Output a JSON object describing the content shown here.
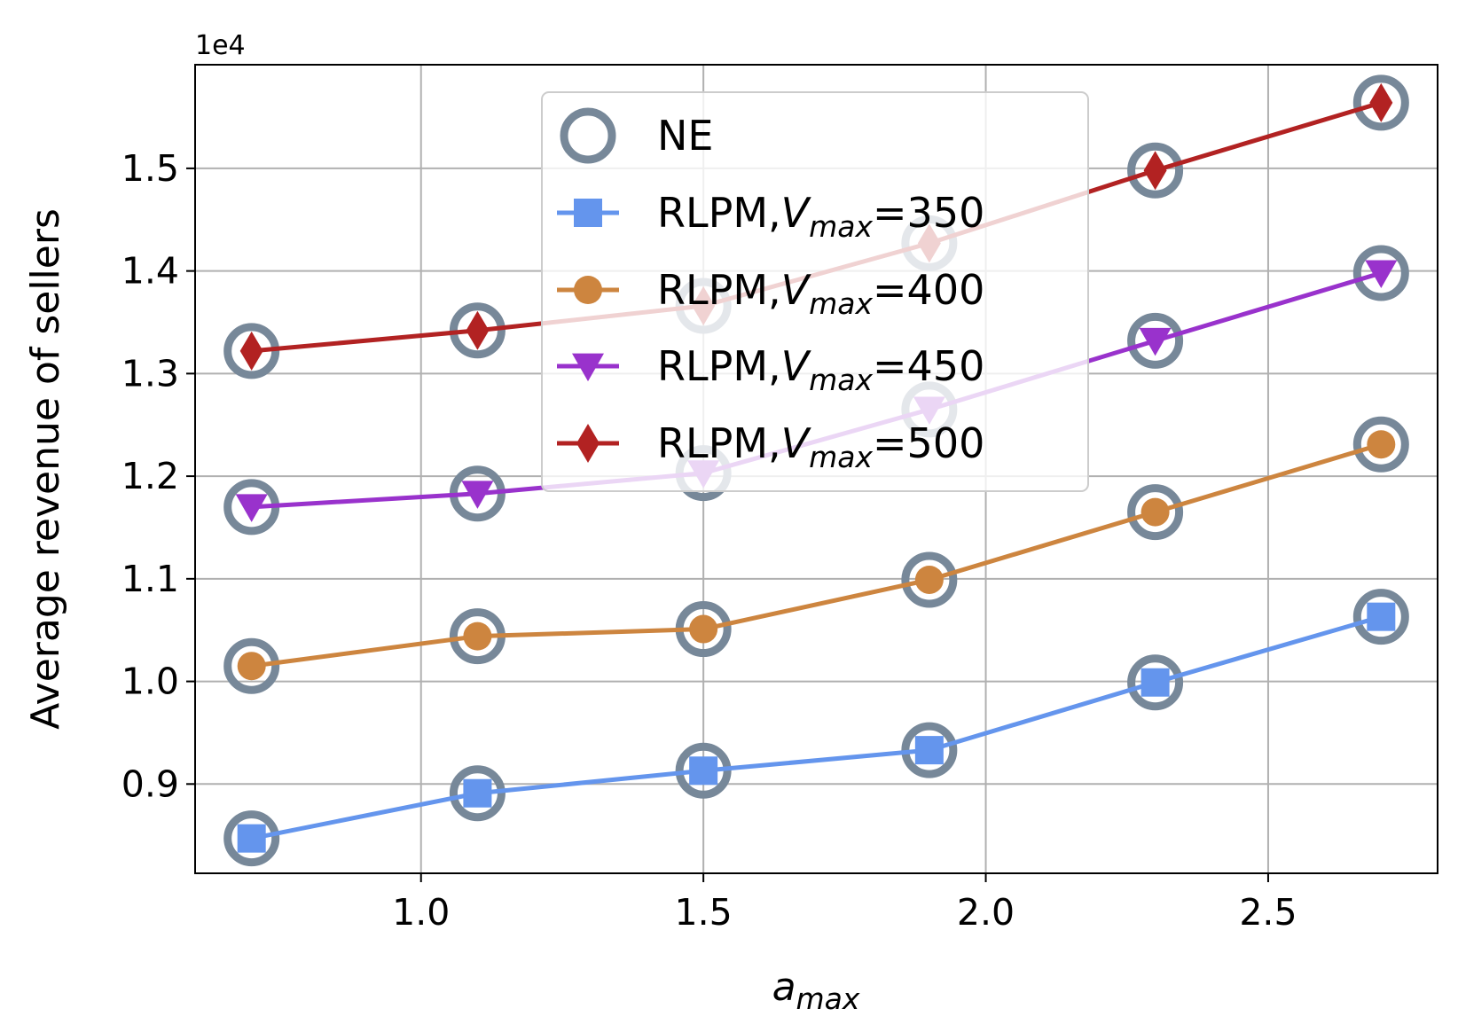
{
  "chart_data": {
    "type": "line",
    "title": "",
    "xlabel": {
      "base": "a",
      "sub": "max"
    },
    "ylabel": "Average revenue of sellers",
    "y_offset_text": "1e4",
    "xlim": [
      0.6,
      2.8
    ],
    "ylim": [
      0.813,
      1.601
    ],
    "x_ticks": [
      1.0,
      1.5,
      2.0,
      2.5
    ],
    "x_tick_labels": [
      "1.0",
      "1.5",
      "2.0",
      "2.5"
    ],
    "y_ticks": [
      0.9,
      1.0,
      1.1,
      1.2,
      1.3,
      1.4,
      1.5
    ],
    "y_tick_labels": [
      "0.9",
      "1.0",
      "1.1",
      "1.2",
      "1.3",
      "1.4",
      "1.5"
    ],
    "grid": true,
    "legend_position": "upper center",
    "x": [
      0.7,
      1.1,
      1.5,
      1.9,
      2.3,
      2.7
    ],
    "series": [
      {
        "name": "NE",
        "label_prefix": "NE",
        "label_var": "",
        "label_sub": "",
        "label_value": "",
        "marker": "ring",
        "color": "#778899",
        "line": false,
        "values_sets": [
          [
            0.847,
            0.891,
            0.913,
            0.933,
            0.999,
            1.063
          ],
          [
            1.015,
            1.044,
            1.051,
            1.099,
            1.165,
            1.231
          ],
          [
            1.17,
            1.183,
            1.203,
            1.265,
            1.332,
            1.398
          ],
          [
            1.322,
            1.342,
            1.366,
            1.427,
            1.498,
            1.564
          ]
        ]
      },
      {
        "name": "RLPM,Vmax=350",
        "label_prefix": "RLPM,",
        "label_var": "V",
        "label_sub": "max",
        "label_value": "=350",
        "marker": "square",
        "color": "#6495ED",
        "line": true,
        "values": [
          0.847,
          0.891,
          0.913,
          0.933,
          0.999,
          1.063
        ]
      },
      {
        "name": "RLPM,Vmax=400",
        "label_prefix": "RLPM,",
        "label_var": "V",
        "label_sub": "max",
        "label_value": "=400",
        "marker": "circle",
        "color": "#CD853F",
        "line": true,
        "values": [
          1.015,
          1.044,
          1.051,
          1.099,
          1.165,
          1.231
        ]
      },
      {
        "name": "RLPM,Vmax=450",
        "label_prefix": "RLPM,",
        "label_var": "V",
        "label_sub": "max",
        "label_value": "=450",
        "marker": "triangle-down",
        "color": "#9932CC",
        "line": true,
        "values": [
          1.17,
          1.183,
          1.203,
          1.265,
          1.332,
          1.398
        ]
      },
      {
        "name": "RLPM,Vmax=500",
        "label_prefix": "RLPM,",
        "label_var": "V",
        "label_sub": "max",
        "label_value": "=500",
        "marker": "diamond",
        "color": "#B22222",
        "line": true,
        "values": [
          1.322,
          1.342,
          1.366,
          1.427,
          1.498,
          1.564
        ]
      }
    ]
  }
}
